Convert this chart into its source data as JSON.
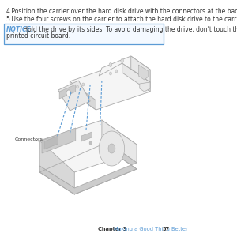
{
  "bg_color": "#ffffff",
  "step4_num": "4",
  "step4_text": " Position the carrier over the hard disk drive with the connectors at the back.",
  "step5_num": "5",
  "step5_text": " Use the four screws on the carrier to attach the hard disk drive to the carrier.",
  "notice_label": "NOTICE:",
  "notice_line1": " Hold the drive by its sides. To avoid damaging the drive, don’t touch the",
  "notice_line2": "printed circuit board.",
  "notice_border_color": "#5b9bd5",
  "notice_label_color": "#5b9bd5",
  "notice_text_color": "#333333",
  "step_num_color": "#333333",
  "step_text_color": "#333333",
  "connectors_label": "Connectors",
  "footer_chapter": "Chapter 3",
  "footer_section": "Making a Good Thing Better",
  "footer_page": "57",
  "footer_chapter_color": "#333333",
  "footer_section_color": "#5b9bd5",
  "footer_page_color": "#333333",
  "dashed_line_color": "#5b9bd5",
  "edge_color": "#aaaaaa",
  "face_light": "#f5f5f5",
  "face_mid": "#e8e8e8",
  "face_dark": "#d8d8d8",
  "face_darker": "#cccccc"
}
